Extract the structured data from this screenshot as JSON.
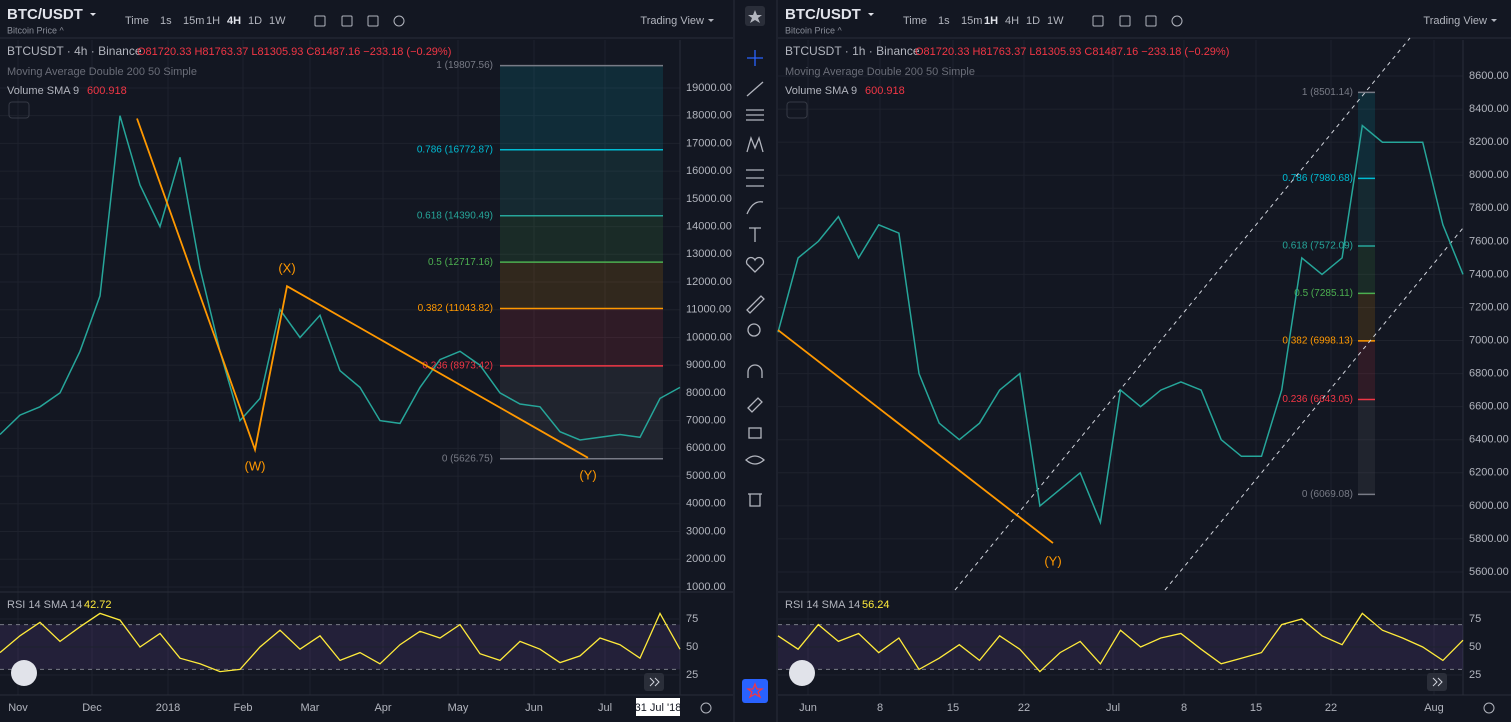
{
  "panels": [
    {
      "symbol": "BTC/USDT",
      "subtitle": "Bitcoin Price ^",
      "intervals": [
        "Time",
        "1s",
        "15m",
        "1H",
        "4H",
        "1D",
        "1W"
      ],
      "active_interval": "4H",
      "layout_button": "Trading View",
      "legend": {
        "title": "BTCUSDT · 4h · Binance",
        "ohlc": "O81720.33 H81763.37 L81305.93 C81487.16 −233.18 (−0.29%)",
        "ma": "Moving Average Double 200 50 Simple",
        "volume": "Volume SMA 9",
        "volume_value": "600.918",
        "rsi": "RSI 14 SMA 14",
        "rsi_value": "42.72"
      },
      "chart_data": {
        "type": "line",
        "color": "#26a69a",
        "ylim": [
          890,
          20730
        ],
        "yticks": [
          {
            "value": 1000,
            "label": "1000.00"
          },
          {
            "value": 2000,
            "label": "2000.00"
          },
          {
            "value": 3000,
            "label": "3000.00"
          },
          {
            "value": 4000,
            "label": "4000.00"
          },
          {
            "value": 5000,
            "label": "5000.00"
          },
          {
            "value": 6000,
            "label": "6000.00"
          },
          {
            "value": 7000,
            "label": "7000.00"
          },
          {
            "value": 8000,
            "label": "8000.00"
          },
          {
            "value": 9000,
            "label": "9000.00"
          },
          {
            "value": 10000,
            "label": "10000.00"
          },
          {
            "value": 11000,
            "label": "11000.00"
          },
          {
            "value": 12000,
            "label": "12000.00"
          },
          {
            "value": 13000,
            "label": "13000.00"
          },
          {
            "value": 14000,
            "label": "14000.00"
          },
          {
            "value": 15000,
            "label": "15000.00"
          },
          {
            "value": 16000,
            "label": "16000.00"
          },
          {
            "value": 17000,
            "label": "17000.00"
          },
          {
            "value": 18000,
            "label": "18000.00"
          },
          {
            "value": 19000,
            "label": "19000.00"
          }
        ],
        "values": [
          6500,
          7200,
          7500,
          8000,
          9500,
          11500,
          18000,
          15500,
          14000,
          16500,
          12500,
          9500,
          7000,
          7800,
          11000,
          10000,
          10800,
          8800,
          8200,
          7000,
          6900,
          8200,
          9200,
          9500,
          9000,
          8000,
          7600,
          7500,
          6600,
          6300,
          6400,
          6500,
          6400,
          7800,
          8200
        ],
        "time_labels": [
          "Nov",
          "Dec",
          "2018",
          "Feb",
          "Mar",
          "Apr",
          "May",
          "Jun",
          "Jul"
        ],
        "crosshair_label": "31 Jul '18",
        "fib": [
          {
            "label": "1 (19807.56)",
            "value": 19807.56,
            "color": "#787b86"
          },
          {
            "label": "0.786 (16772.87)",
            "value": 16772.87,
            "color": "#00bcd4"
          },
          {
            "label": "0.618 (14390.49)",
            "value": 14390.49,
            "color": "#26a69a"
          },
          {
            "label": "0.5 (12717.16)",
            "value": 12717.16,
            "color": "#4caf50"
          },
          {
            "label": "0.382 (11043.82)",
            "value": 11043.82,
            "color": "#ff9800"
          },
          {
            "label": "0.236 (8973.42)",
            "value": 8973.42,
            "color": "#f23645"
          },
          {
            "label": "0 (5626.75)",
            "value": 5626.75,
            "color": "#787b86"
          }
        ],
        "wave": [
          {
            "value": 17900
          },
          {
            "value": 5950,
            "label": "(W)"
          },
          {
            "value": 11850,
            "label": "(X)"
          },
          {
            "value": 5660,
            "label": "(Y)"
          }
        ],
        "wave_color": "#ff9800",
        "rsi": {
          "ylim": [
            7.1,
            96.4
          ],
          "yticks": [
            25,
            50,
            75
          ],
          "bands": [
            30,
            70
          ],
          "color": "#ffeb3b",
          "values": [
            45,
            60,
            72,
            55,
            68,
            80,
            74,
            50,
            62,
            40,
            35,
            28,
            30,
            50,
            65,
            48,
            60,
            38,
            45,
            35,
            52,
            64,
            58,
            70,
            44,
            38,
            55,
            48,
            36,
            42,
            58,
            52,
            40,
            80,
            48
          ]
        }
      }
    },
    {
      "symbol": "BTC/USDT",
      "subtitle": "Bitcoin Price ^",
      "intervals": [
        "Time",
        "1s",
        "15m",
        "1H",
        "4H",
        "1D",
        "1W"
      ],
      "active_interval": "1H",
      "layout_button": "Trading View",
      "legend": {
        "title": "BTCUSDT · 1h · Binance",
        "ohlc": "O81720.33 H81763.37 L81305.93 C81487.16 −233.18 (−0.29%)",
        "ma": "Moving Average Double 200 50 Simple",
        "volume": "Volume SMA 9",
        "volume_value": "600.918",
        "rsi": "RSI 14 SMA 14",
        "rsi_value": "56.24"
      },
      "chart_data": {
        "type": "line",
        "color": "#26a69a",
        "ylim": [
          5491,
          8818
        ],
        "yticks": [
          {
            "value": 5600,
            "label": "5600.00"
          },
          {
            "value": 5800,
            "label": "5800.00"
          },
          {
            "value": 6000,
            "label": "6000.00"
          },
          {
            "value": 6200,
            "label": "6200.00"
          },
          {
            "value": 6400,
            "label": "6400.00"
          },
          {
            "value": 6600,
            "label": "6600.00"
          },
          {
            "value": 6800,
            "label": "6800.00"
          },
          {
            "value": 7000,
            "label": "7000.00"
          },
          {
            "value": 7200,
            "label": "7200.00"
          },
          {
            "value": 7400,
            "label": "7400.00"
          },
          {
            "value": 7600,
            "label": "7600.00"
          },
          {
            "value": 7800,
            "label": "7800.00"
          },
          {
            "value": 8000,
            "label": "8000.00"
          },
          {
            "value": 8200,
            "label": "8200.00"
          },
          {
            "value": 8400,
            "label": "8400.00"
          },
          {
            "value": 8600,
            "label": "8600.00"
          }
        ],
        "values": [
          7050,
          7500,
          7600,
          7750,
          7500,
          7700,
          7650,
          6800,
          6500,
          6400,
          6500,
          6700,
          6800,
          6000,
          6100,
          6200,
          5900,
          6700,
          6600,
          6700,
          6750,
          6700,
          6400,
          6300,
          6300,
          6700,
          7500,
          7400,
          7500,
          8300,
          8200,
          8200,
          8200,
          7700,
          7400
        ],
        "time_labels": [
          "Jun",
          "8",
          "15",
          "22",
          "Jul",
          "8",
          "15",
          "22",
          "Aug"
        ],
        "fib": [
          {
            "label": "1 (8501.14)",
            "value": 8501.14,
            "color": "#787b86"
          },
          {
            "label": "0.786 (7980.68)",
            "value": 7980.68,
            "color": "#00bcd4"
          },
          {
            "label": "0.618 (7572.09)",
            "value": 7572.09,
            "color": "#26a69a"
          },
          {
            "label": "0.5 (7285.11)",
            "value": 7285.11,
            "color": "#4caf50"
          },
          {
            "label": "0.382 (6998.13)",
            "value": 6998.13,
            "color": "#ff9800"
          },
          {
            "label": "0.236 (6643.05)",
            "value": 6643.05,
            "color": "#f23645"
          },
          {
            "label": "0 (6069.08)",
            "value": 6069.08,
            "color": "#787b86"
          }
        ],
        "wave": [
          {
            "value": 7063
          },
          {
            "value": 5775,
            "label": "(Y)"
          }
        ],
        "wave_color": "#ff9800",
        "rsi": {
          "ylim": [
            7.1,
            96.4
          ],
          "yticks": [
            25,
            50,
            75
          ],
          "bands": [
            30,
            70
          ],
          "color": "#ffeb3b",
          "values": [
            60,
            48,
            70,
            55,
            62,
            45,
            58,
            30,
            40,
            52,
            38,
            60,
            48,
            28,
            45,
            55,
            35,
            65,
            50,
            58,
            62,
            48,
            35,
            40,
            45,
            70,
            75,
            60,
            52,
            80,
            65,
            58,
            50,
            38,
            56
          ]
        }
      }
    }
  ]
}
